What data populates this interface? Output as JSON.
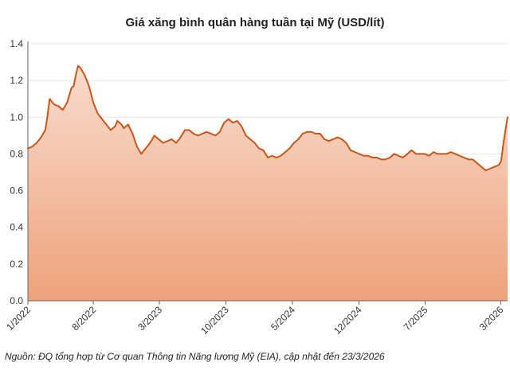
{
  "colors": {
    "line": "#c8571b",
    "fill_top": "#f8dccd",
    "fill_bottom": "#eea27b",
    "axis": "#666666",
    "grid": "#e4e4e4"
  },
  "chart_data": {
    "type": "area",
    "title": "Giá xăng bình quân hàng tuần tại Mỹ (USD/lít)",
    "xlabel": "",
    "ylabel": "",
    "ylim": [
      0,
      1.4
    ],
    "yticks": [
      0.0,
      0.2,
      0.4,
      0.6,
      0.8,
      1.0,
      1.2,
      1.4
    ],
    "ytick_labels": [
      "0.0",
      "0.2",
      "0.4",
      "0.6",
      "0.8",
      "1.0",
      "1.2",
      "1.4"
    ],
    "xlim": [
      "2022-01-03",
      "2026-03-23"
    ],
    "xticks": [
      "2022-01-01",
      "2022-08-01",
      "2023-03-01",
      "2023-10-01",
      "2024-05-01",
      "2024-12-01",
      "2025-07-01",
      "2026-03-01"
    ],
    "xtick_labels": [
      "1/2022",
      "8/2022",
      "3/2023",
      "10/2023",
      "5/2024",
      "12/2024",
      "7/2025",
      "3/2026"
    ],
    "grid": true,
    "legend": "none",
    "series": [
      {
        "points": [
          [
            "2022-01-03",
            0.83
          ],
          [
            "2022-01-17",
            0.84
          ],
          [
            "2022-01-31",
            0.86
          ],
          [
            "2022-02-14",
            0.89
          ],
          [
            "2022-02-28",
            0.93
          ],
          [
            "2022-03-07",
            1.01
          ],
          [
            "2022-03-14",
            1.1
          ],
          [
            "2022-03-28",
            1.07
          ],
          [
            "2022-04-11",
            1.06
          ],
          [
            "2022-04-25",
            1.04
          ],
          [
            "2022-05-09",
            1.08
          ],
          [
            "2022-05-23",
            1.16
          ],
          [
            "2022-05-30",
            1.17
          ],
          [
            "2022-06-06",
            1.23
          ],
          [
            "2022-06-13",
            1.28
          ],
          [
            "2022-06-20",
            1.27
          ],
          [
            "2022-07-04",
            1.23
          ],
          [
            "2022-07-18",
            1.17
          ],
          [
            "2022-08-01",
            1.08
          ],
          [
            "2022-08-15",
            1.02
          ],
          [
            "2022-08-29",
            0.99
          ],
          [
            "2022-09-12",
            0.96
          ],
          [
            "2022-09-26",
            0.93
          ],
          [
            "2022-10-10",
            0.95
          ],
          [
            "2022-10-17",
            0.98
          ],
          [
            "2022-10-31",
            0.96
          ],
          [
            "2022-11-07",
            0.94
          ],
          [
            "2022-11-21",
            0.96
          ],
          [
            "2022-12-05",
            0.91
          ],
          [
            "2022-12-19",
            0.84
          ],
          [
            "2023-01-02",
            0.8
          ],
          [
            "2023-01-16",
            0.83
          ],
          [
            "2023-01-30",
            0.86
          ],
          [
            "2023-02-13",
            0.9
          ],
          [
            "2023-02-27",
            0.88
          ],
          [
            "2023-03-13",
            0.86
          ],
          [
            "2023-03-27",
            0.87
          ],
          [
            "2023-04-10",
            0.88
          ],
          [
            "2023-04-24",
            0.86
          ],
          [
            "2023-05-08",
            0.89
          ],
          [
            "2023-05-22",
            0.93
          ],
          [
            "2023-06-05",
            0.93
          ],
          [
            "2023-06-19",
            0.91
          ],
          [
            "2023-07-03",
            0.9
          ],
          [
            "2023-07-17",
            0.91
          ],
          [
            "2023-07-31",
            0.92
          ],
          [
            "2023-08-14",
            0.91
          ],
          [
            "2023-08-28",
            0.9
          ],
          [
            "2023-09-11",
            0.92
          ],
          [
            "2023-09-25",
            0.97
          ],
          [
            "2023-10-09",
            0.99
          ],
          [
            "2023-10-23",
            0.97
          ],
          [
            "2023-11-06",
            0.98
          ],
          [
            "2023-11-20",
            0.95
          ],
          [
            "2023-12-04",
            0.9
          ],
          [
            "2023-12-18",
            0.88
          ],
          [
            "2024-01-01",
            0.86
          ],
          [
            "2024-01-15",
            0.83
          ],
          [
            "2024-01-29",
            0.82
          ],
          [
            "2024-02-05",
            0.8
          ],
          [
            "2024-02-12",
            0.78
          ],
          [
            "2024-02-26",
            0.79
          ],
          [
            "2024-03-11",
            0.78
          ],
          [
            "2024-03-25",
            0.79
          ],
          [
            "2024-04-08",
            0.81
          ],
          [
            "2024-04-22",
            0.83
          ],
          [
            "2024-05-06",
            0.86
          ],
          [
            "2024-05-20",
            0.88
          ],
          [
            "2024-06-03",
            0.91
          ],
          [
            "2024-06-17",
            0.92
          ],
          [
            "2024-07-01",
            0.92
          ],
          [
            "2024-07-15",
            0.91
          ],
          [
            "2024-07-29",
            0.91
          ],
          [
            "2024-08-12",
            0.88
          ],
          [
            "2024-08-26",
            0.87
          ],
          [
            "2024-09-09",
            0.88
          ],
          [
            "2024-09-23",
            0.89
          ],
          [
            "2024-10-07",
            0.88
          ],
          [
            "2024-10-21",
            0.86
          ],
          [
            "2024-11-04",
            0.82
          ],
          [
            "2024-11-18",
            0.81
          ],
          [
            "2024-12-02",
            0.8
          ],
          [
            "2024-12-16",
            0.79
          ],
          [
            "2024-12-30",
            0.79
          ],
          [
            "2025-01-13",
            0.78
          ],
          [
            "2025-01-27",
            0.78
          ],
          [
            "2025-02-10",
            0.77
          ],
          [
            "2025-02-24",
            0.77
          ],
          [
            "2025-03-10",
            0.78
          ],
          [
            "2025-03-24",
            0.8
          ],
          [
            "2025-04-07",
            0.79
          ],
          [
            "2025-04-21",
            0.78
          ],
          [
            "2025-05-05",
            0.8
          ],
          [
            "2025-05-19",
            0.82
          ],
          [
            "2025-06-02",
            0.8
          ],
          [
            "2025-06-16",
            0.8
          ],
          [
            "2025-06-30",
            0.8
          ],
          [
            "2025-07-14",
            0.79
          ],
          [
            "2025-07-28",
            0.81
          ],
          [
            "2025-08-11",
            0.8
          ],
          [
            "2025-08-25",
            0.8
          ],
          [
            "2025-09-08",
            0.8
          ],
          [
            "2025-09-22",
            0.81
          ],
          [
            "2025-10-06",
            0.8
          ],
          [
            "2025-10-20",
            0.79
          ],
          [
            "2025-11-03",
            0.78
          ],
          [
            "2025-11-17",
            0.77
          ],
          [
            "2025-12-01",
            0.77
          ],
          [
            "2025-12-15",
            0.75
          ],
          [
            "2025-12-29",
            0.73
          ],
          [
            "2026-01-12",
            0.71
          ],
          [
            "2026-01-26",
            0.72
          ],
          [
            "2026-02-09",
            0.73
          ],
          [
            "2026-02-23",
            0.74
          ],
          [
            "2026-03-02",
            0.76
          ],
          [
            "2026-03-09",
            0.85
          ],
          [
            "2026-03-16",
            0.93
          ],
          [
            "2026-03-23",
            1.0
          ]
        ]
      }
    ]
  },
  "source_note": "Nguồn: ĐQ tổng hợp từ Cơ quan Thông tin Năng lượng Mỹ (EIA), cập nhật đến 23/3/2026"
}
